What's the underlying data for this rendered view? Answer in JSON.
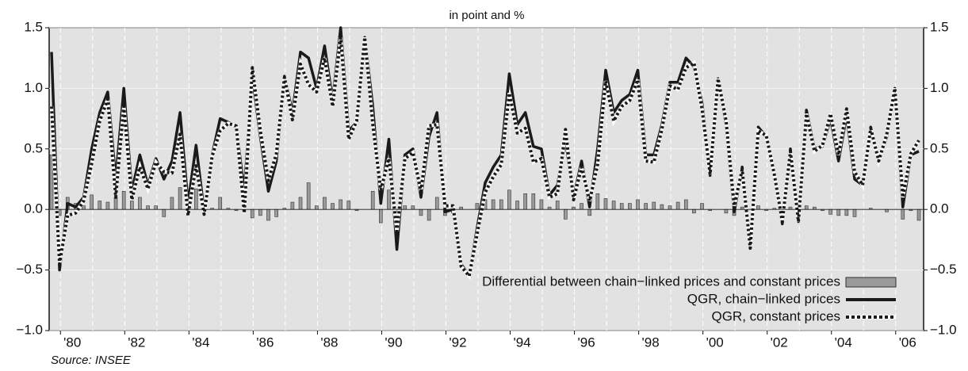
{
  "chart_data": {
    "type": "combo",
    "subtitle": "in point and %",
    "source": "Source: INSEE",
    "categories": [
      null,
      null,
      "'80",
      null,
      null,
      null,
      null,
      null,
      null,
      null,
      "'82",
      null,
      null,
      null,
      null,
      null,
      null,
      null,
      "'84",
      null,
      null,
      null,
      null,
      null,
      null,
      null,
      "'86",
      null,
      null,
      null,
      null,
      null,
      null,
      null,
      "'88",
      null,
      null,
      null,
      null,
      null,
      null,
      null,
      "'90",
      null,
      null,
      null,
      null,
      null,
      null,
      null,
      "'92",
      null,
      null,
      null,
      null,
      null,
      null,
      null,
      "'94",
      null,
      null,
      null,
      null,
      null,
      null,
      null,
      "'96",
      null,
      null,
      null,
      null,
      null,
      null,
      null,
      "'98",
      null,
      null,
      null,
      null,
      null,
      null,
      null,
      "'00",
      null,
      null,
      null,
      null,
      null,
      null,
      null,
      "'02",
      null,
      null,
      null,
      null,
      null,
      null,
      null,
      "'04",
      null,
      null,
      null,
      null,
      null,
      null,
      null,
      "'06",
      null,
      null
    ],
    "series": [
      {
        "name": "Differential between chain−linked prices and constant prices",
        "type": "bar",
        "color": "#9a9a9a",
        "values": [
          0.45,
          -0.05,
          0.1,
          0.05,
          0.03,
          0.12,
          0.07,
          0.06,
          0.15,
          0.15,
          0.07,
          0.1,
          0.03,
          0.03,
          -0.06,
          0.1,
          0.18,
          0.1,
          0.17,
          0.02,
          0.01,
          0.1,
          0.01,
          -0.01,
          0.18,
          -0.07,
          -0.05,
          -0.09,
          -0.06,
          0.01,
          0.06,
          0.1,
          0.22,
          0.03,
          0.1,
          0.05,
          0.08,
          0.07,
          -0.01,
          0.0,
          0.15,
          -0.11,
          0.16,
          -0.15,
          0.03,
          0.03,
          -0.05,
          -0.09,
          0.1,
          -0.05,
          -0.03,
          0.02,
          0.0,
          0.05,
          0.08,
          0.08,
          0.08,
          0.16,
          0.07,
          0.13,
          0.13,
          0.08,
          0.02,
          0.07,
          -0.08,
          0.02,
          0.05,
          -0.05,
          0.13,
          0.09,
          0.07,
          0.05,
          0.05,
          0.08,
          0.05,
          0.06,
          0.04,
          0.03,
          0.06,
          0.08,
          -0.03,
          0.05,
          -0.01,
          0.0,
          -0.03,
          -0.05,
          0.02,
          0.0,
          0.03,
          -0.01,
          0.01,
          -0.02,
          0.02,
          0.0,
          0.03,
          0.02,
          -0.01,
          -0.04,
          -0.05,
          -0.05,
          -0.06,
          0.0,
          0.01,
          0.0,
          -0.02,
          0.0,
          -0.08,
          -0.01,
          -0.09
        ]
      },
      {
        "name": "QGR, chain−linked prices",
        "type": "line",
        "dashed": false,
        "color": "#1a1a1a",
        "values": [
          1.3,
          -0.5,
          0.05,
          0.02,
          0.1,
          0.5,
          0.8,
          0.97,
          0.25,
          1.0,
          0.15,
          0.45,
          0.2,
          0.42,
          0.25,
          0.4,
          0.8,
          0.05,
          0.53,
          -0.02,
          0.45,
          0.75,
          0.72,
          0.68,
          0.15,
          1.1,
          0.6,
          0.15,
          0.4,
          1.1,
          0.8,
          1.3,
          1.25,
          1.0,
          1.35,
          0.9,
          1.5,
          0.65,
          0.72,
          1.42,
          0.85,
          0.05,
          0.58,
          -0.33,
          0.45,
          0.5,
          0.1,
          0.6,
          0.8,
          -0.02,
          0.0,
          -0.45,
          -0.55,
          -0.15,
          0.22,
          0.35,
          0.45,
          1.12,
          0.7,
          0.8,
          0.52,
          0.5,
          0.12,
          0.2,
          0.58,
          0.1,
          0.4,
          0.02,
          0.5,
          1.15,
          0.8,
          0.9,
          0.95,
          1.15,
          0.45,
          0.45,
          0.7,
          1.05,
          1.05,
          1.25,
          1.18,
          0.88,
          0.28,
          1.08,
          0.7,
          -0.02,
          0.35,
          -0.32,
          0.68,
          0.6,
          0.3,
          -0.12,
          0.5,
          -0.1,
          0.82,
          0.5,
          0.52,
          0.75,
          0.4,
          0.78,
          0.25,
          0.2,
          0.68,
          0.4,
          0.6,
          1.0,
          0.02,
          0.45,
          0.48
        ]
      },
      {
        "name": "QGR, constant prices",
        "type": "line",
        "dashed": true,
        "color": "#1a1a1a",
        "values": [
          0.85,
          -0.45,
          -0.05,
          -0.03,
          0.07,
          0.38,
          0.73,
          0.91,
          0.1,
          0.85,
          0.08,
          0.35,
          0.17,
          0.39,
          0.31,
          0.3,
          0.62,
          -0.05,
          0.36,
          -0.04,
          0.44,
          0.65,
          0.71,
          0.69,
          -0.03,
          1.17,
          0.65,
          0.24,
          0.46,
          1.09,
          0.74,
          1.2,
          1.03,
          0.97,
          1.25,
          0.85,
          1.42,
          0.58,
          0.73,
          1.42,
          0.7,
          0.16,
          0.42,
          -0.18,
          0.42,
          0.47,
          0.15,
          0.69,
          0.7,
          0.03,
          0.03,
          -0.47,
          -0.55,
          -0.2,
          0.14,
          0.27,
          0.37,
          0.96,
          0.63,
          0.67,
          0.39,
          0.42,
          0.1,
          0.13,
          0.66,
          0.08,
          0.35,
          0.07,
          0.37,
          1.06,
          0.73,
          0.85,
          0.9,
          1.07,
          0.4,
          0.39,
          0.66,
          1.02,
          0.99,
          1.17,
          1.21,
          0.83,
          0.29,
          1.08,
          0.73,
          0.03,
          0.33,
          -0.32,
          0.65,
          0.61,
          0.29,
          -0.1,
          0.48,
          -0.1,
          0.79,
          0.48,
          0.53,
          0.79,
          0.45,
          0.83,
          0.31,
          0.2,
          0.67,
          0.4,
          0.62,
          1.0,
          0.1,
          0.46,
          0.57
        ]
      }
    ],
    "ylim": [
      -1.0,
      1.5
    ],
    "yticks": [
      {
        "value": -1.0,
        "label": "−1.0"
      },
      {
        "value": -0.5,
        "label": "−0.5"
      },
      {
        "value": 0.0,
        "label": "0.0"
      },
      0.5,
      {
        "value": 1.0,
        "label": "1.0"
      },
      1.5
    ],
    "grid": true,
    "background": "#e2e2e2",
    "legend": "lower right"
  }
}
